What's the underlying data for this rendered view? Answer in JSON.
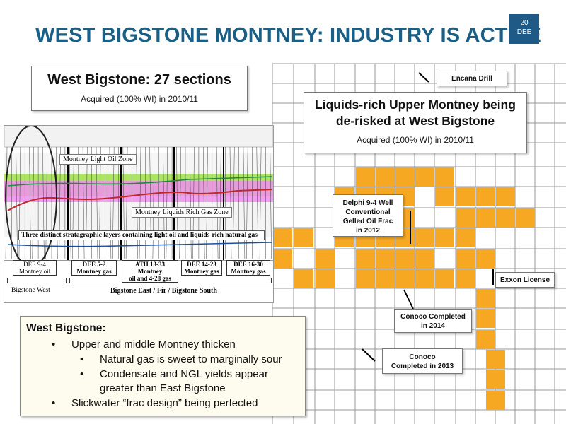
{
  "slide": {
    "title": "WEST BIGSTONE MONTNEY:  INDUSTRY IS ACTIVE",
    "page_number": "20",
    "ticker": "DEE"
  },
  "west_bigstone_box": {
    "heading": "West Bigstone: 27 sections",
    "subtext": "Acquired (100% WI) in 2010/11"
  },
  "liquids_box": {
    "heading_line1": "Liquids-rich Upper Montney being",
    "heading_line2": "de-risked at West Bigstone",
    "subtext": "Acquired (100% WI) in 2010/11"
  },
  "callouts": {
    "encana": "Encana Drill",
    "delphi_line1": "Delphi 9-4 Well",
    "delphi_line2": "Conventional",
    "delphi_line3": "Gelled Oil Frac",
    "delphi_line4": "in 2012",
    "exxon": "Exxon License",
    "conoco_2014_line1": "Conoco Completed",
    "conoco_2014_line2": "in 2014",
    "conoco_2013_line1": "Conoco",
    "conoco_2013_line2": "Completed in 2013"
  },
  "log_panel": {
    "light_oil_zone": "Montney Light Oil Zone",
    "liquids_gas_zone": "Montney Liquids Rich Gas Zone",
    "banner": "Three distinct stratagraphic layers containing light oil and liquids-rich natural gas",
    "wells": [
      {
        "line1": "DEE 9-4",
        "line2": "Montney oil"
      },
      {
        "line1": "DEE 5-2",
        "line2": "Montney gas"
      },
      {
        "line1": "ATH 13-33 Montney",
        "line2": "oil and 4-28 gas"
      },
      {
        "line1": "DEE 14-23",
        "line2": "Montney gas"
      },
      {
        "line1": "DEE 16-30",
        "line2": "Montney gas"
      }
    ],
    "region_west": "Bigstone West",
    "region_east": "Bigstone East / Fir / Bigstone South"
  },
  "bullets": {
    "heading": "West Bigstone:",
    "items": [
      "Upper and middle Montney thicken",
      "Natural gas is sweet to marginally sour",
      "Condensate and NGL yields appear",
      "greater than East Bigstone",
      "Slickwater “frac design” being perfected"
    ]
  },
  "colors": {
    "title": "#1a5f86",
    "land": "#f7a823",
    "grid": "#9a9a9a",
    "light_oil": "#9ee045",
    "liquids_gas": "#f08ef0"
  }
}
